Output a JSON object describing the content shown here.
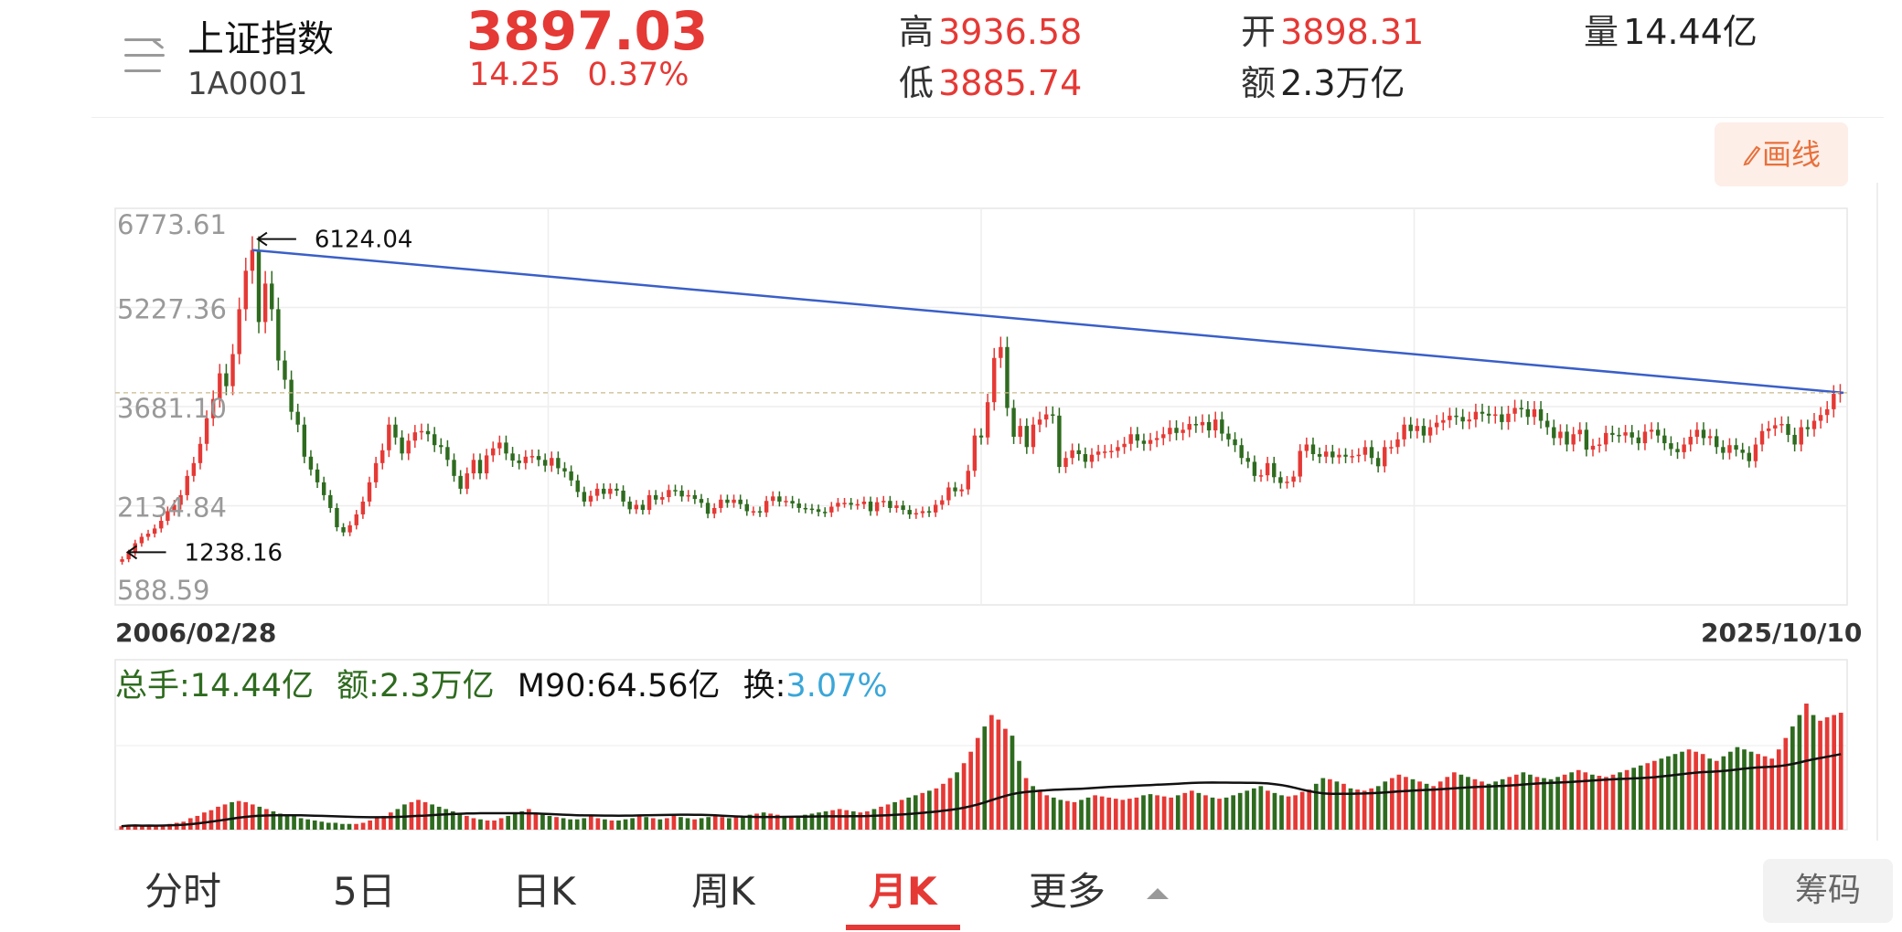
{
  "quote": {
    "name": "上证指数",
    "code": "1A0001",
    "price": "3897.03",
    "change": "14.25",
    "change_pct": "0.37%",
    "high_label": "高",
    "high": "3936.58",
    "low_label": "低",
    "low": "3885.74",
    "open_label": "开",
    "open": "3898.31",
    "amount_label": "额",
    "amount": "2.3万亿",
    "volume_label": "量",
    "volume": "14.44亿"
  },
  "toolbar": {
    "draw_label": "画线",
    "draw_icon": "pencil-icon"
  },
  "colors": {
    "up": "#e53935",
    "down": "#2e6b1f",
    "trendline": "#3a5fc8",
    "ma": "#111111",
    "turnover": "#3aa6d8"
  },
  "chart_data": [
    {
      "type": "candlestick",
      "title": "",
      "xlabel": "",
      "ylabel": "",
      "y_ticks": [
        "6773.61",
        "5227.36",
        "3681.10",
        "2134.84",
        "588.59"
      ],
      "ylim": [
        588.59,
        6773.61
      ],
      "x_start": "2006/02/28",
      "x_end": "2025/10/10",
      "annotations": [
        {
          "text": "6124.04",
          "arrow": "left",
          "x": "2007/10",
          "y": 6124.04
        },
        {
          "text": "1238.16",
          "arrow": "left",
          "x": "2006/02",
          "y": 1238.16
        }
      ],
      "trendline": {
        "from": {
          "x": "2007/10",
          "y": 6124.04
        },
        "to": {
          "x": "2025/10",
          "y": 3897
        }
      },
      "reference_line": {
        "y": 3897.03,
        "style": "dashed"
      },
      "grid": true,
      "monthly_close": [
        1300,
        1400,
        1550,
        1650,
        1700,
        1780,
        1900,
        2050,
        2150,
        2300,
        2600,
        2800,
        3100,
        3500,
        3800,
        4200,
        4000,
        4500,
        5200,
        5800,
        6124,
        5000,
        5600,
        5200,
        4400,
        4100,
        3600,
        3400,
        2900,
        2700,
        2500,
        2300,
        2100,
        1800,
        1720,
        1830,
        2000,
        2200,
        2500,
        2800,
        3000,
        3400,
        3200,
        2950,
        3150,
        3280,
        3300,
        3250,
        3080,
        3050,
        2850,
        2600,
        2400,
        2640,
        2850,
        2640,
        2920,
        3030,
        3120,
        2950,
        2840,
        2800,
        2900,
        2910,
        2850,
        2760,
        2880,
        2720,
        2670,
        2530,
        2350,
        2200,
        2290,
        2400,
        2320,
        2400,
        2370,
        2200,
        2080,
        2150,
        2070,
        2300,
        2230,
        2270,
        2380,
        2370,
        2280,
        2300,
        2240,
        2180,
        2010,
        2100,
        2230,
        2180,
        2230,
        2160,
        2050,
        2050,
        2030,
        2210,
        2280,
        2200,
        2210,
        2170,
        2100,
        2090,
        2080,
        2040,
        2030,
        2120,
        2180,
        2180,
        2150,
        2160,
        2200,
        2050,
        2190,
        2210,
        2100,
        2140,
        2070,
        2000,
        2020,
        2050,
        2030,
        2150,
        2220,
        2420,
        2360,
        2390,
        2680,
        3230,
        3200,
        3750,
        4440,
        4610,
        3660,
        3210,
        3380,
        3050,
        3400,
        3480,
        3560,
        3540,
        2740,
        2880,
        3000,
        2940,
        2820,
        2930,
        2980,
        2980,
        2990,
        3050,
        3100,
        3250,
        3150,
        3100,
        3160,
        3190,
        3250,
        3350,
        3270,
        3320,
        3410,
        3390,
        3440,
        3310,
        3480,
        3260,
        3170,
        3080,
        2880,
        2820,
        2600,
        2610,
        2800,
        2580,
        2490,
        2510,
        2590,
        2990,
        3090,
        2940,
        2900,
        2980,
        2890,
        2930,
        2900,
        2910,
        2930,
        3050,
        2880,
        2750,
        3050,
        3050,
        3170,
        3400,
        3300,
        3380,
        3230,
        3360,
        3430,
        3470,
        3540,
        3520,
        3450,
        3480,
        3600,
        3570,
        3540,
        3560,
        3440,
        3570,
        3660,
        3640,
        3520,
        3640,
        3460,
        3360,
        3190,
        3290,
        3090,
        3250,
        3320,
        3010,
        3070,
        3090,
        3270,
        3240,
        3230,
        3280,
        3200,
        3110,
        3290,
        3320,
        3230,
        3110,
        3020,
        2970,
        3090,
        3210,
        3320,
        3190,
        3220,
        3050,
        2960,
        3080,
        3010,
        2960,
        2830,
        3090,
        3300,
        3340,
        3390,
        3410,
        3240,
        3090,
        3360,
        3330,
        3460,
        3550,
        3640,
        3880,
        3897
      ]
    },
    {
      "type": "bar",
      "title": "",
      "total_hand_label": "总手:",
      "total_hand": "14.44亿",
      "amount_label": "额:",
      "amount": "2.3万亿",
      "ma_label": "M90:",
      "ma": "64.56亿",
      "turnover_label": "换:",
      "turnover": "3.07%",
      "series": [
        {
          "values": [
            3,
            4,
            4,
            3,
            4,
            3,
            4,
            5,
            6,
            7,
            10,
            12,
            15,
            17,
            20,
            22,
            24,
            25,
            24,
            22,
            20,
            18,
            16,
            14,
            13,
            12,
            10,
            9,
            8,
            7,
            6,
            6,
            5,
            5,
            5,
            6,
            8,
            10,
            12,
            15,
            18,
            22,
            24,
            26,
            24,
            22,
            20,
            18,
            16,
            14,
            12,
            10,
            9,
            8,
            8,
            10,
            12,
            14,
            16,
            18,
            15,
            13,
            12,
            11,
            10,
            9,
            9,
            10,
            12,
            10,
            9,
            8,
            8,
            9,
            10,
            12,
            11,
            10,
            9,
            10,
            12,
            11,
            10,
            9,
            10,
            11,
            12,
            11,
            10,
            11,
            12,
            13,
            14,
            15,
            14,
            13,
            12,
            11,
            12,
            13,
            14,
            15,
            16,
            17,
            18,
            17,
            16,
            15,
            16,
            18,
            20,
            22,
            24,
            26,
            28,
            30,
            32,
            34,
            36,
            40,
            45,
            50,
            58,
            68,
            80,
            90,
            100,
            96,
            88,
            82,
            60,
            45,
            38,
            34,
            30,
            28,
            26,
            25,
            24,
            26,
            28,
            30,
            29,
            28,
            27,
            26,
            27,
            28,
            30,
            31,
            30,
            29,
            28,
            30,
            32,
            34,
            32,
            30,
            28,
            27,
            28,
            30,
            32,
            34,
            36,
            38,
            34,
            32,
            30,
            29,
            30,
            33,
            35,
            40,
            45,
            44,
            42,
            40,
            36,
            35,
            34,
            36,
            38,
            42,
            45,
            48,
            46,
            44,
            42,
            40,
            38,
            42,
            46,
            50,
            48,
            46,
            44,
            42,
            40,
            42,
            44,
            46,
            48,
            50,
            48,
            46,
            45,
            44,
            46,
            48,
            50,
            52,
            50,
            48,
            47,
            46,
            48,
            50,
            52,
            54,
            56,
            58,
            60,
            62,
            64,
            66,
            68,
            70,
            68,
            66,
            62,
            60,
            64,
            68,
            72,
            70,
            68,
            66,
            64,
            62,
            70,
            80,
            90,
            100,
            110,
            100,
            95,
            98,
            100,
            102
          ]
        }
      ],
      "ma_series": {
        "name": "M90"
      }
    }
  ],
  "period_tabs": [
    "分时",
    "5日",
    "日K",
    "周K",
    "月K",
    "更多"
  ],
  "active_tab": "月K",
  "chip_button": "筹码"
}
